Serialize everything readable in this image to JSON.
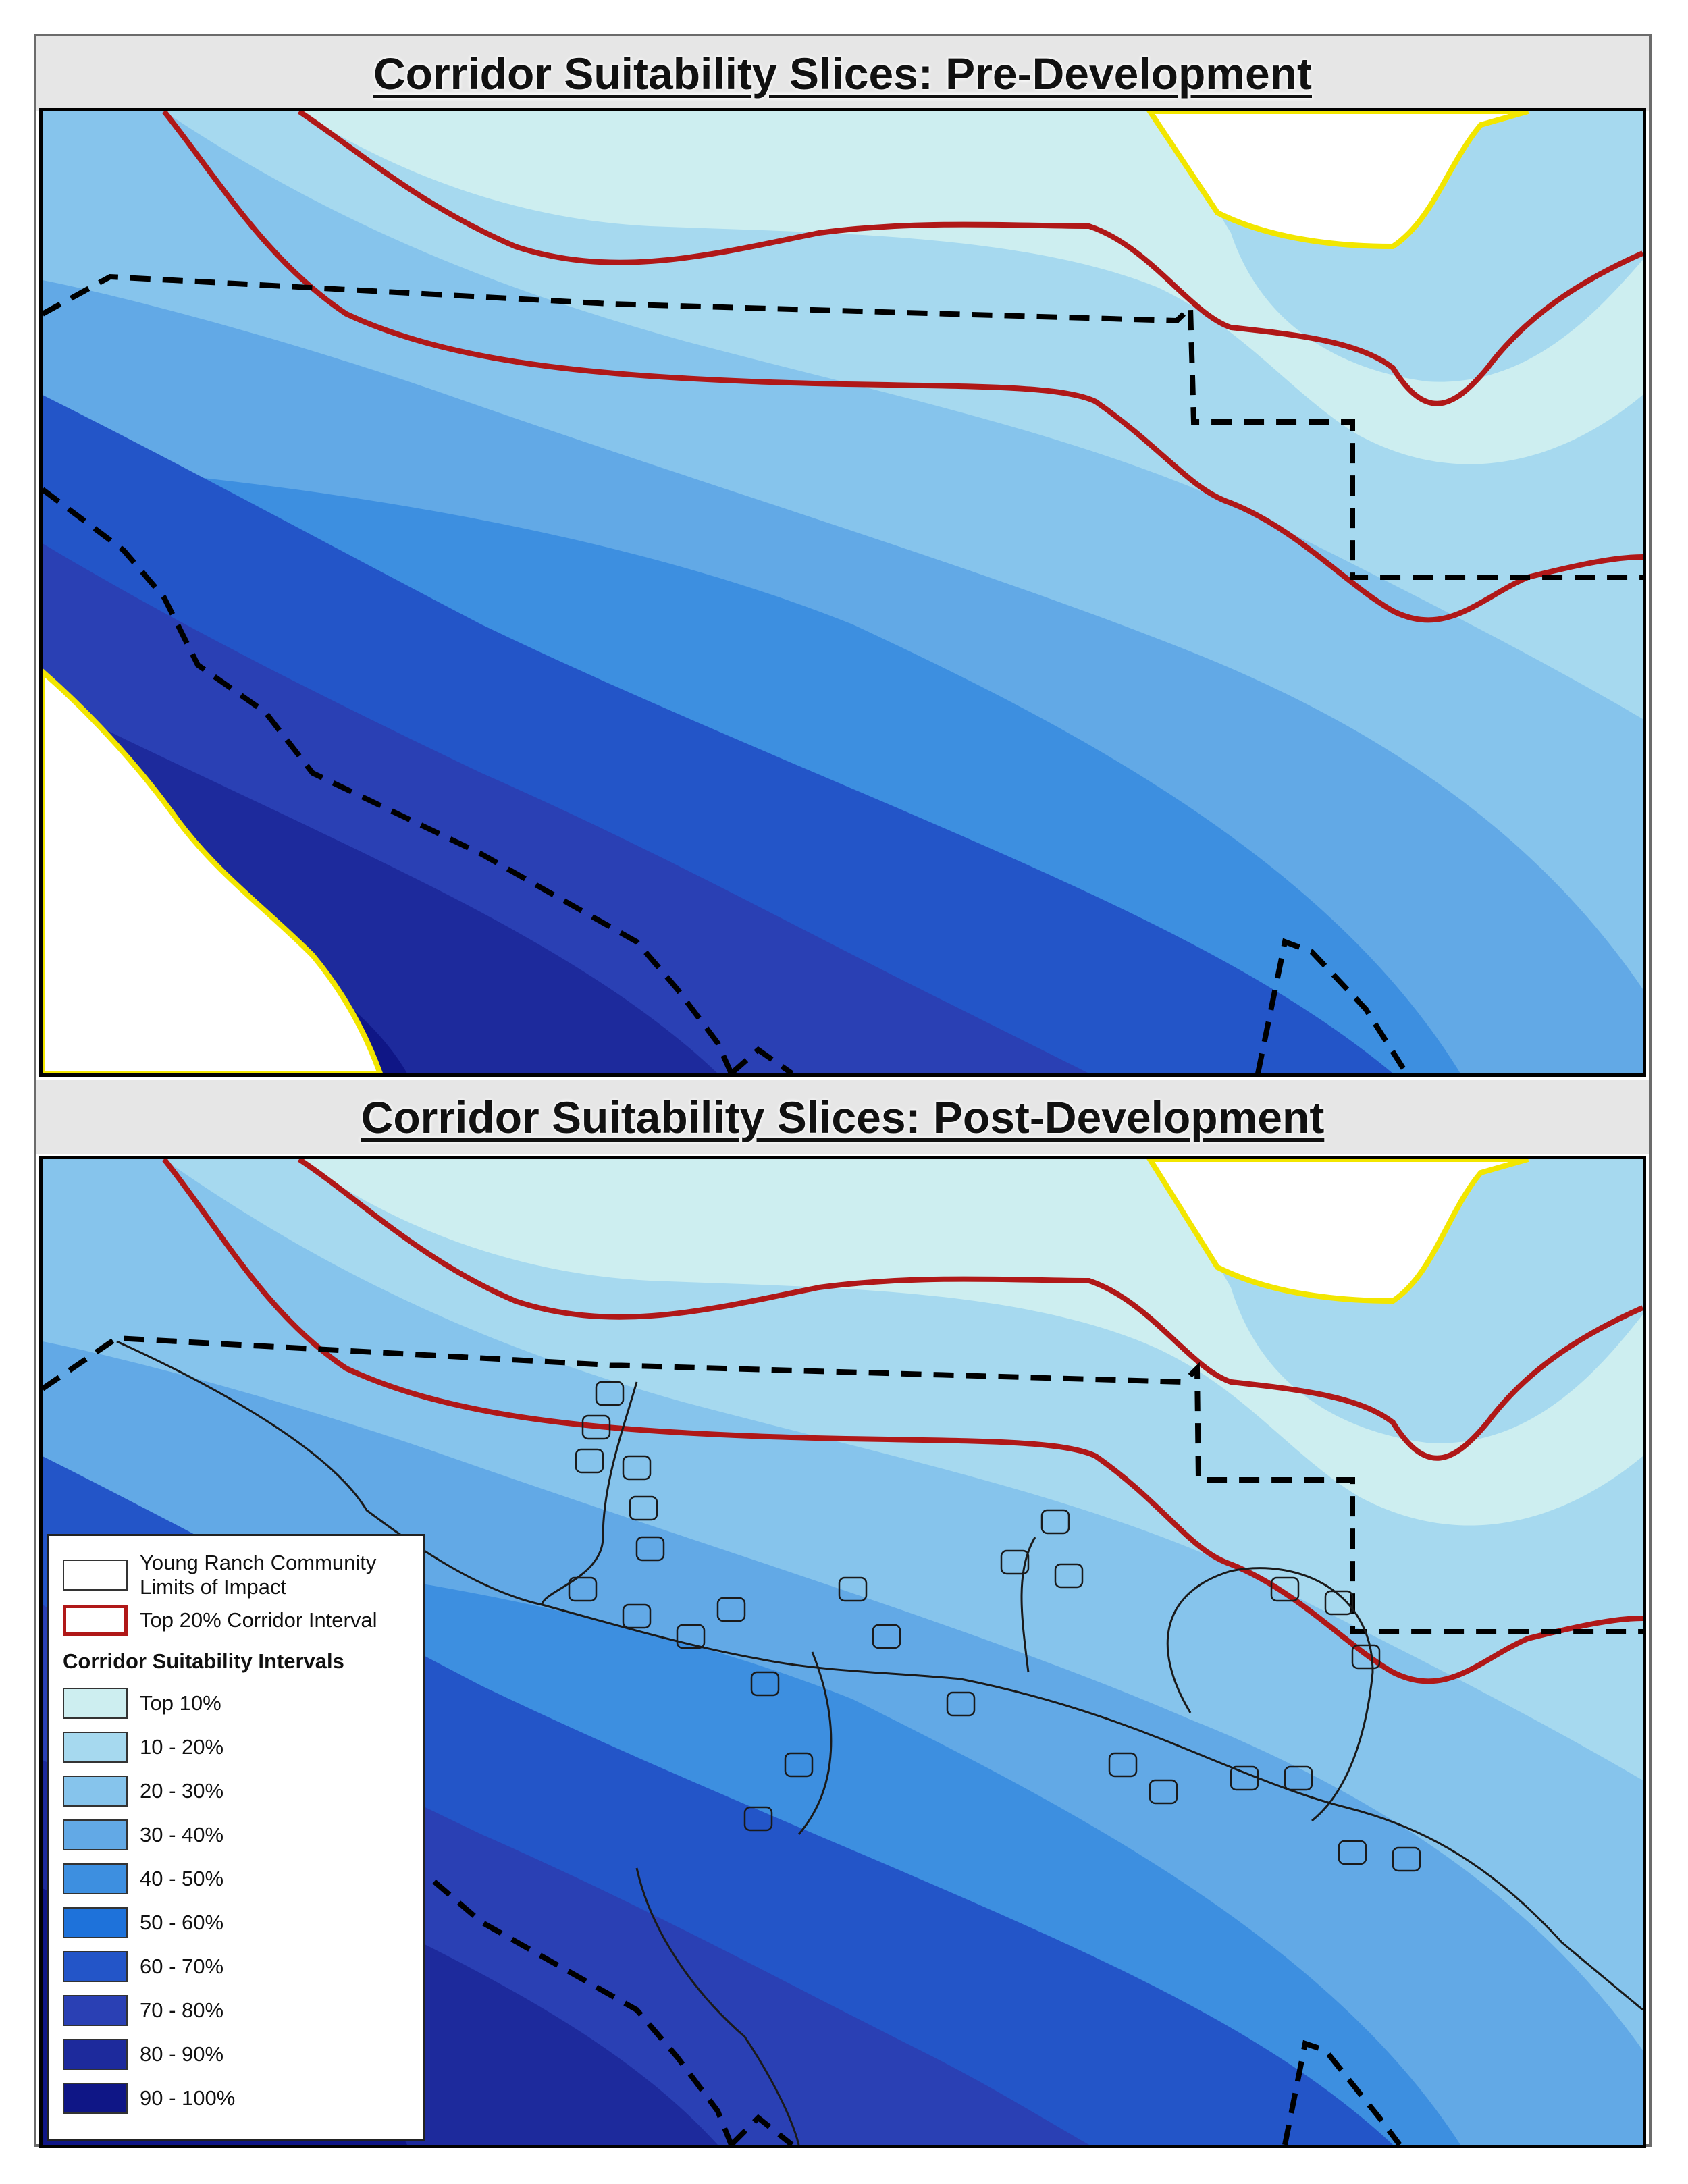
{
  "panels": [
    {
      "title": "Corridor Suitability Slices: Pre-Development"
    },
    {
      "title": "Corridor Suitability Slices: Post-Development"
    }
  ],
  "legend": {
    "limits_label": "Young Ranch Community Limits of Impact",
    "corridor_label": "Top 20% Corridor Interval",
    "intervals_heading": "Corridor Suitability Intervals",
    "intervals": [
      {
        "label": "Top 10%",
        "color": "#cdeef0"
      },
      {
        "label": "10 - 20%",
        "color": "#a6d9ef"
      },
      {
        "label": "20 - 30%",
        "color": "#86c4ec"
      },
      {
        "label": "30 - 40%",
        "color": "#62a9e6"
      },
      {
        "label": "40 - 50%",
        "color": "#3d8fe0"
      },
      {
        "label": "50 - 60%",
        "color": "#1e72da"
      },
      {
        "label": "60 - 70%",
        "color": "#2355c8"
      },
      {
        "label": "70 - 80%",
        "color": "#2a40b4"
      },
      {
        "label": "80 - 90%",
        "color": "#1d2a9c"
      },
      {
        "label": "90 - 100%",
        "color": "#0f1686"
      }
    ]
  },
  "colors": {
    "corridor_line": "#b01818",
    "boundary_line": "#f2e600",
    "limits_dash": "#000000",
    "road": "#1a1a1a"
  }
}
